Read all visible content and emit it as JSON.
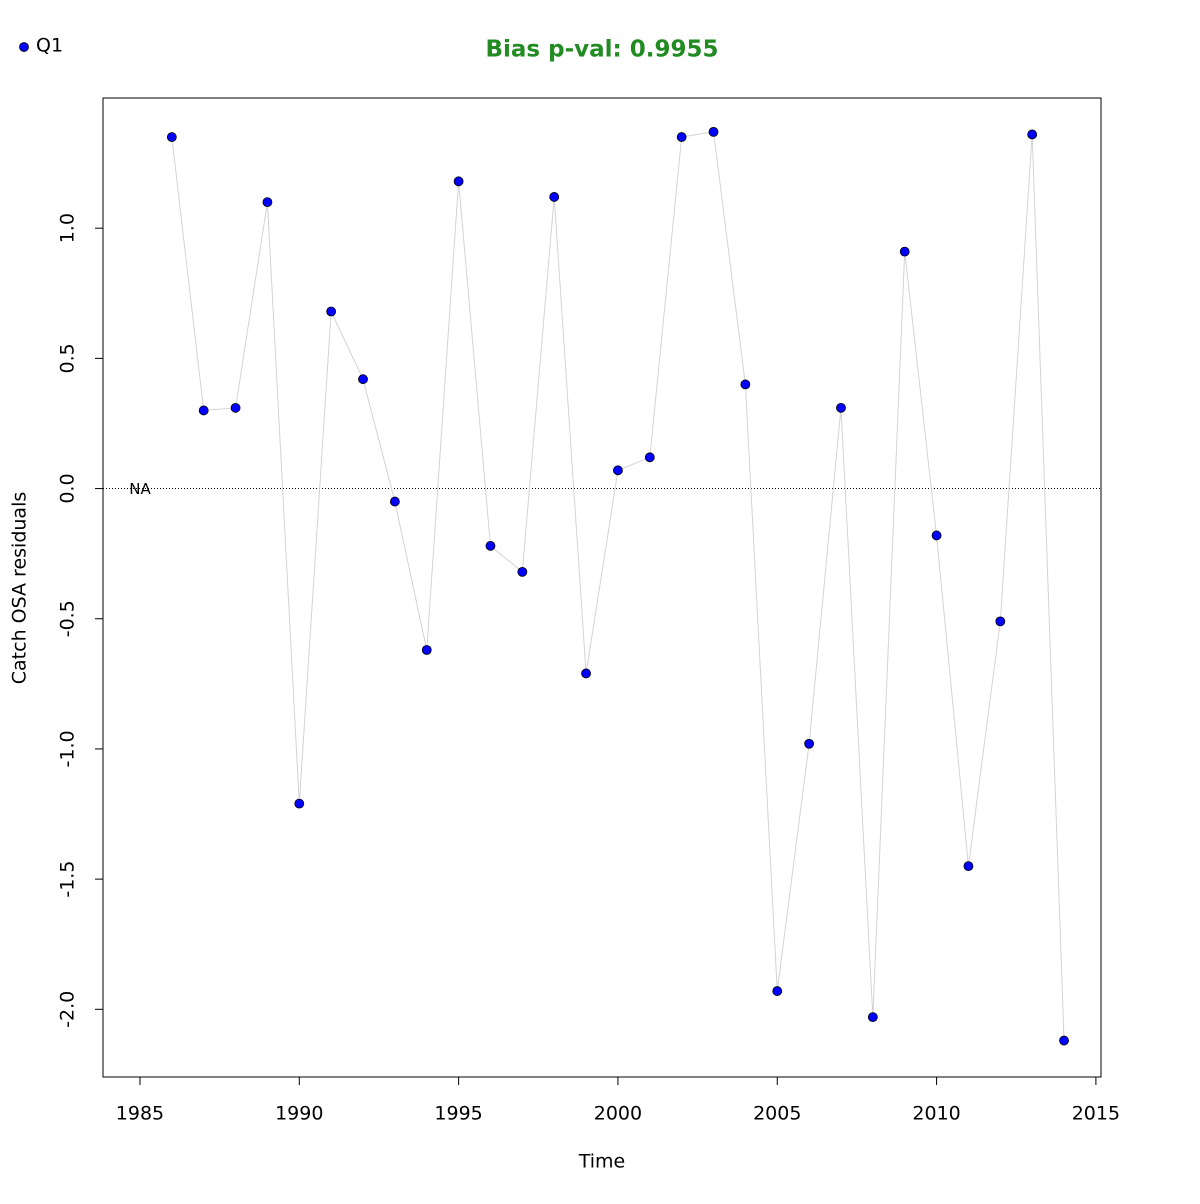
{
  "chart_data": {
    "type": "line",
    "title": "Bias p-val: 0.9955",
    "title_color": "#228b22",
    "x_label": "Time",
    "y_label": "Catch OSA residuals",
    "annotation": "NA",
    "reference_line": 0,
    "x": [
      1986,
      1987,
      1988,
      1989,
      1990,
      1991,
      1992,
      1993,
      1994,
      1995,
      1996,
      1997,
      1998,
      1999,
      2000,
      2001,
      2002,
      2003,
      2004,
      2005,
      2006,
      2007,
      2008,
      2009,
      2010,
      2011,
      2012,
      2013,
      2014
    ],
    "series": [
      {
        "name": "Q1",
        "color": "#0000ff",
        "line_color": "#d3d3d3",
        "values": [
          1.35,
          0.3,
          0.31,
          1.1,
          -1.21,
          0.68,
          0.42,
          -0.05,
          -0.62,
          1.18,
          -0.22,
          -0.32,
          1.12,
          -0.71,
          0.07,
          0.12,
          1.35,
          1.37,
          0.4,
          -1.93,
          -0.98,
          0.31,
          -2.03,
          0.91,
          -0.18,
          -1.45,
          -0.51,
          1.36,
          -2.12
        ]
      }
    ],
    "xlim": [
      1983.84,
      2015.16
    ],
    "ylim": [
      -2.26,
      1.5
    ],
    "xticks": [
      1985,
      1990,
      1995,
      2000,
      2005,
      2010,
      2015
    ],
    "yticks": [
      {
        "value": -2,
        "label": "-2.0"
      },
      {
        "value": -1.5,
        "label": "-1.5"
      },
      {
        "value": -1,
        "label": "-1.0"
      },
      {
        "value": -0.5,
        "label": "-0.5"
      },
      {
        "value": 0,
        "label": "0.0"
      },
      {
        "value": 0.5,
        "label": "0.5"
      },
      {
        "value": 1,
        "label": "1.0"
      }
    ],
    "legend": "top-left"
  }
}
